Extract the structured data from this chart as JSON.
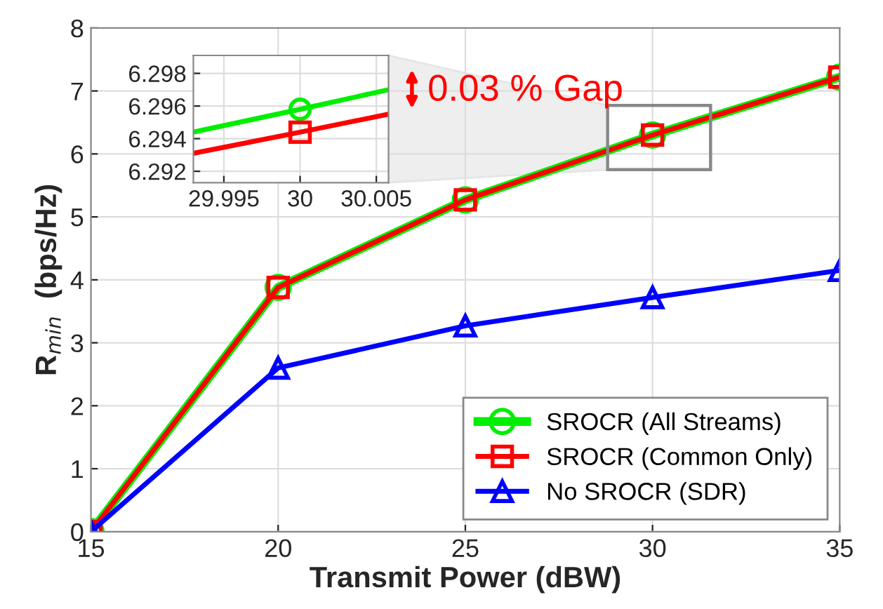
{
  "chart_data": [
    {
      "type": "line",
      "xlabel": "Transmit Power (dBW)",
      "ylabel": "R$_{min}$  (bps/Hz)",
      "x": [
        15,
        20,
        25,
        30,
        35
      ],
      "xlim": [
        15,
        35
      ],
      "xticks": [
        15,
        20,
        25,
        30,
        35
      ],
      "ylim": [
        0,
        8
      ],
      "yticks": [
        0,
        1,
        2,
        3,
        4,
        5,
        6,
        7,
        8
      ],
      "grid": true,
      "legend": "bottom right",
      "series": [
        {
          "name": "SROCR (All Streams)",
          "color": "#00ee00",
          "marker": "circle",
          "values": [
            0,
            3.88,
            5.27,
            6.3,
            7.22
          ]
        },
        {
          "name": "SROCR (Common Only)",
          "color": "#ff0000",
          "marker": "square",
          "values": [
            0,
            3.88,
            5.27,
            6.3,
            7.22
          ]
        },
        {
          "name": "No SROCR (SDR)",
          "color": "#0000ff",
          "marker": "triangle",
          "values": [
            0,
            2.6,
            3.27,
            3.72,
            4.15
          ]
        }
      ]
    },
    {
      "type": "line",
      "xlim": [
        29.993,
        30.0058
      ],
      "xticks": [
        29.995,
        30,
        30.005
      ],
      "ylim": [
        6.2913,
        6.2991
      ],
      "yticks": [
        6.292,
        6.294,
        6.296,
        6.298
      ],
      "grid": true,
      "annotations": [
        "0.03 % Gap"
      ],
      "series": [
        {
          "color": "#00ee00",
          "marker": "none",
          "x": [
            29.993,
            30,
            30.0058
          ],
          "values": [
            6.2944,
            6.2958,
            6.297
          ]
        },
        {
          "color": "#ff0000",
          "marker": "none",
          "x": [
            29.993,
            30,
            30.0058
          ],
          "values": [
            6.2931,
            6.2944,
            6.2955
          ]
        },
        {
          "type": "scatter",
          "color": "#00ee00",
          "marker": "circle",
          "x": [
            30
          ],
          "values": [
            6.2958
          ]
        },
        {
          "type": "scatter",
          "color": "#ff0000",
          "marker": "square",
          "x": [
            30
          ],
          "values": [
            6.2944
          ]
        }
      ]
    }
  ]
}
